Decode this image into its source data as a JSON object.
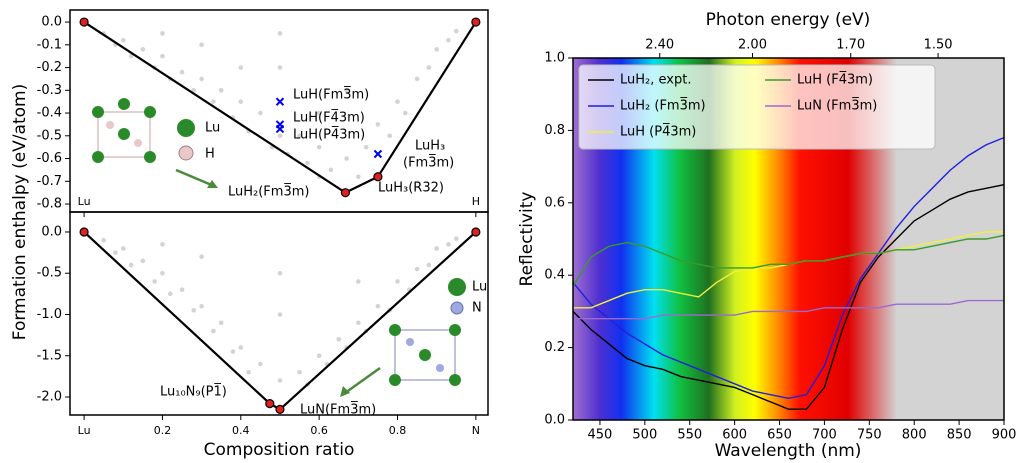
{
  "chart_data": [
    {
      "type": "hull",
      "ylabel": "Formation enthalpy (eV/atom)",
      "xlim": [
        -0.036,
        1.031
      ],
      "ylim": [
        -0.835,
        0.053
      ],
      "xticks": [
        {
          "value": 0,
          "label": "Lu"
        },
        {
          "value": 1,
          "label": "H"
        }
      ],
      "yticks": [
        {
          "value": 0,
          "label": "0.0"
        },
        -0.1,
        -0.2,
        -0.3,
        -0.4,
        -0.5,
        -0.6,
        -0.7,
        -0.8
      ],
      "series": [
        {
          "color": "#d3d3d3",
          "marker": "dot",
          "x": [
            0.05,
            0.08,
            0.1,
            0.12,
            0.15,
            0.18,
            0.2,
            0.22,
            0.25,
            0.28,
            0.3,
            0.33,
            0.35,
            0.38,
            0.4,
            0.42,
            0.45,
            0.48,
            0.5,
            0.5,
            0.52,
            0.55,
            0.57,
            0.6,
            0.6,
            0.63,
            0.67,
            0.67,
            0.7,
            0.72,
            0.75,
            0.78,
            0.8,
            0.82,
            0.85,
            0.88,
            0.9,
            0.93,
            0.95,
            0.3,
            0.2,
            0.5,
            0.4,
            0.6
          ],
          "values": [
            -0.05,
            -0.1,
            -0.08,
            -0.15,
            -0.12,
            -0.2,
            -0.15,
            -0.25,
            -0.22,
            -0.3,
            -0.25,
            -0.35,
            -0.3,
            -0.42,
            -0.35,
            -0.48,
            -0.4,
            -0.55,
            -0.2,
            -0.5,
            -0.58,
            -0.5,
            -0.62,
            -0.55,
            -0.68,
            -0.65,
            -0.3,
            -0.6,
            -0.68,
            -0.55,
            -0.45,
            -0.5,
            -0.35,
            -0.4,
            -0.25,
            -0.2,
            -0.12,
            -0.08,
            -0.04,
            -0.1,
            -0.05,
            -0.05,
            -0.2,
            -0.4
          ]
        },
        {
          "color": "#0000ee",
          "marker": "cross",
          "x": [
            0.5,
            0.5,
            0.5,
            0.75
          ],
          "values": [
            -0.35,
            -0.45,
            -0.47,
            -0.58
          ]
        },
        {
          "color": "#e02020",
          "marker": "hull",
          "x": [
            0,
            0.667,
            0.75,
            1
          ],
          "values": [
            0,
            -0.75,
            -0.68,
            0
          ]
        }
      ],
      "annotations": [
        "LuH(Fm3̅m)",
        "LuH(F4̅3m)",
        "LuH(P4̅3m)",
        "LuH₃",
        "(Fm3̅m)",
        "LuH₂(Fm3̅m)",
        "LuH₃(R32)"
      ],
      "inset_labels": [
        "Lu",
        "H"
      ]
    },
    {
      "type": "hull",
      "xlabel": "Composition ratio",
      "xlim": [
        -0.036,
        1.031
      ],
      "ylim": [
        -2.218,
        0.242
      ],
      "xticks": [
        {
          "value": 0,
          "label": "Lu"
        },
        0.2,
        0.4,
        0.6,
        0.8,
        {
          "value": 1,
          "label": "N"
        }
      ],
      "yticks": [
        {
          "value": 0,
          "label": "0.0"
        },
        -0.5,
        {
          "value": -1,
          "label": "-1.0"
        },
        -1.5,
        {
          "value": -2,
          "label": "-2.0"
        }
      ],
      "series": [
        {
          "color": "#d3d3d3",
          "marker": "dot",
          "x": [
            0.05,
            0.08,
            0.1,
            0.12,
            0.15,
            0.18,
            0.2,
            0.22,
            0.25,
            0.28,
            0.3,
            0.33,
            0.35,
            0.38,
            0.4,
            0.42,
            0.45,
            0.5,
            0.5,
            0.5,
            0.55,
            0.57,
            0.6,
            0.62,
            0.65,
            0.67,
            0.7,
            0.72,
            0.75,
            0.78,
            0.8,
            0.83,
            0.85,
            0.88,
            0.9,
            0.93,
            0.95,
            0.3,
            0.2,
            0.7
          ],
          "values": [
            -0.1,
            -0.25,
            -0.2,
            -0.4,
            -0.35,
            -0.6,
            -0.5,
            -0.75,
            -0.7,
            -0.95,
            -0.9,
            -1.2,
            -1.1,
            -1.45,
            -1.4,
            -1.7,
            -1.6,
            -1.0,
            -1.8,
            -0.5,
            -1.7,
            -1.85,
            -1.5,
            -1.6,
            -1.3,
            -1.4,
            -1.1,
            -1.2,
            -0.9,
            -0.95,
            -0.6,
            -0.7,
            -0.45,
            -0.4,
            -0.2,
            -0.15,
            -0.08,
            -0.3,
            -0.15,
            -0.6
          ]
        },
        {
          "color": "#e02020",
          "marker": "hull",
          "x": [
            0,
            0.474,
            0.5,
            1
          ],
          "values": [
            0,
            -2.08,
            -2.15,
            0
          ]
        }
      ],
      "annotations": [
        "Lu₁₀N₉(P1̅)",
        "LuN(Fm3̅m)"
      ],
      "inset_labels": [
        "Lu",
        "N"
      ]
    },
    {
      "type": "line",
      "xlabel": "Wavelength (nm)",
      "ylabel": "Reflectivity",
      "x2label": "Photon energy (eV)",
      "xlim": [
        420,
        900
      ],
      "ylim": [
        0,
        1
      ],
      "xticks": [
        450,
        500,
        550,
        600,
        650,
        700,
        750,
        800,
        850,
        900
      ],
      "yticks": [
        {
          "value": 0,
          "label": "0.0"
        },
        0.2,
        0.4,
        0.6,
        0.8,
        {
          "value": 1,
          "label": "1.0"
        }
      ],
      "x2ticks": [
        {
          "value": 2.4,
          "label": "2.40"
        },
        {
          "value": 2,
          "label": "2.00"
        },
        {
          "value": 1.7,
          "label": "1.70"
        },
        {
          "value": 1.5,
          "label": "1.50"
        }
      ],
      "x": [
        420,
        440,
        460,
        480,
        500,
        520,
        540,
        560,
        580,
        600,
        620,
        640,
        660,
        680,
        700,
        720,
        740,
        760,
        780,
        800,
        820,
        840,
        860,
        880,
        900
      ],
      "series": [
        {
          "name": "LuH₂, expt.",
          "color": "#000000",
          "values": [
            0.3,
            0.25,
            0.21,
            0.17,
            0.15,
            0.14,
            0.12,
            0.11,
            0.1,
            0.09,
            0.07,
            0.05,
            0.03,
            0.03,
            0.09,
            0.25,
            0.38,
            0.45,
            0.5,
            0.55,
            0.58,
            0.61,
            0.63,
            0.64,
            0.65
          ]
        },
        {
          "name": "LuH₂ (Fm3̅m)",
          "color": "#1f1fdd",
          "values": [
            0.38,
            0.32,
            0.28,
            0.24,
            0.21,
            0.18,
            0.16,
            0.14,
            0.12,
            0.1,
            0.08,
            0.07,
            0.06,
            0.07,
            0.15,
            0.29,
            0.39,
            0.46,
            0.53,
            0.59,
            0.64,
            0.69,
            0.73,
            0.76,
            0.78
          ]
        },
        {
          "name": "LuH (P4̅3m)",
          "color": "#f0f040",
          "values": [
            0.31,
            0.31,
            0.33,
            0.35,
            0.36,
            0.36,
            0.35,
            0.34,
            0.38,
            0.41,
            0.42,
            0.42,
            0.43,
            0.44,
            0.44,
            0.45,
            0.46,
            0.46,
            0.47,
            0.48,
            0.49,
            0.5,
            0.51,
            0.52,
            0.52
          ]
        },
        {
          "name": "LuH (F4̅3m)",
          "color": "#3a9a2a",
          "values": [
            0.37,
            0.45,
            0.48,
            0.49,
            0.48,
            0.46,
            0.44,
            0.43,
            0.42,
            0.42,
            0.42,
            0.43,
            0.43,
            0.44,
            0.44,
            0.45,
            0.46,
            0.46,
            0.47,
            0.47,
            0.48,
            0.49,
            0.5,
            0.5,
            0.51
          ]
        },
        {
          "name": "LuN (Fm3̅m)",
          "color": "#9a6ad0",
          "values": [
            0.28,
            0.28,
            0.28,
            0.28,
            0.28,
            0.29,
            0.29,
            0.29,
            0.29,
            0.29,
            0.3,
            0.3,
            0.3,
            0.3,
            0.31,
            0.31,
            0.31,
            0.31,
            0.32,
            0.32,
            0.32,
            0.32,
            0.33,
            0.33,
            0.33
          ]
        }
      ]
    }
  ]
}
